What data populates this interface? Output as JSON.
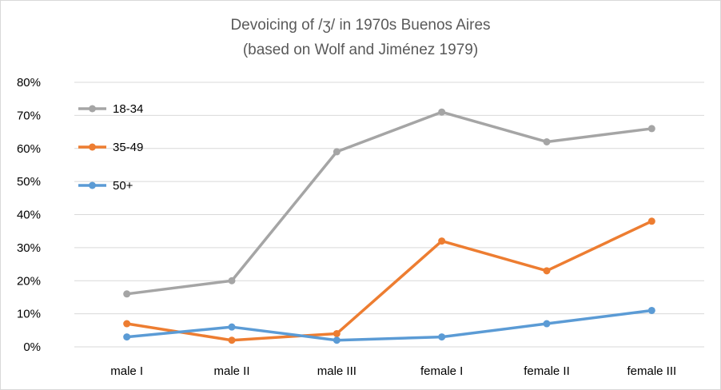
{
  "chart_data": {
    "type": "line",
    "title": "Devoicing of /ʒ/ in 1970s Buenos Aires",
    "subtitle": "(based on Wolf and Jiménez 1979)",
    "xlabel": "",
    "ylabel": "",
    "categories": [
      "male I",
      "male II",
      "male III",
      "female I",
      "female II",
      "female III"
    ],
    "ylim": [
      0,
      80
    ],
    "yticks": [
      0,
      10,
      20,
      30,
      40,
      50,
      60,
      70,
      80
    ],
    "ytick_labels": [
      "0%",
      "10%",
      "20%",
      "30%",
      "40%",
      "50%",
      "60%",
      "70%",
      "80%"
    ],
    "grid": true,
    "legend_position": "top-left",
    "series": [
      {
        "name": "18-34",
        "color": "#a5a5a5",
        "values": [
          16,
          20,
          59,
          71,
          62,
          66
        ]
      },
      {
        "name": "35-49",
        "color": "#ed7d31",
        "values": [
          7,
          2,
          4,
          32,
          23,
          38
        ]
      },
      {
        "name": "50+",
        "color": "#5b9bd5",
        "values": [
          3,
          6,
          2,
          3,
          7,
          11
        ]
      }
    ]
  }
}
